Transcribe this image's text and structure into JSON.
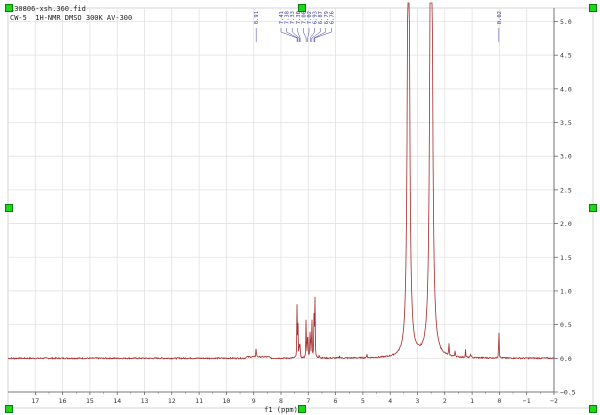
{
  "header": {
    "line1": "130806-xsh.360.fid",
    "line2": "CW-5  1H-NMR DMSO 300K AV-300"
  },
  "colors": {
    "spectrum": "#a52a2a",
    "peak_labels": "#3a3aa8",
    "grid": "#dddddd",
    "handles": "#1bd81b"
  },
  "chart_data": {
    "type": "line",
    "title": "",
    "xlabel": "f1 (ppm)",
    "ylabel": "",
    "xlim": [
      18,
      -2
    ],
    "ylim": [
      -0.5,
      5.2
    ],
    "x_reversed": true,
    "grid": true,
    "x_ticks": [
      17,
      16,
      15,
      14,
      13,
      12,
      11,
      10,
      9,
      8,
      7,
      6,
      5,
      4,
      3,
      2,
      1,
      0,
      -1,
      -2
    ],
    "x_tick_labels": [
      "17",
      "16",
      "15",
      "14",
      "13",
      "12",
      "11",
      "10",
      "9",
      "8",
      "7",
      "6",
      "5",
      "4",
      "3",
      "2",
      "1",
      "0",
      "−1",
      "−2"
    ],
    "y_ticks": [
      -0.5,
      0,
      0.5,
      1,
      1.5,
      2,
      2.5,
      3,
      3.5,
      4,
      4.5,
      5
    ],
    "y_tick_labels": [
      "−0.5",
      "0.0",
      "0.5",
      "1.0",
      "1.5",
      "2.0",
      "2.5",
      "3.0",
      "3.5",
      "4.0",
      "4.5",
      "5.0"
    ],
    "peaks": [
      {
        "ppm": 8.91,
        "height": 0.18
      },
      {
        "ppm": 7.41,
        "height": 0.95
      },
      {
        "ppm": 7.38,
        "height": 0.5
      },
      {
        "ppm": 7.33,
        "height": 0.3
      },
      {
        "ppm": 7.3,
        "height": 0.2
      },
      {
        "ppm": 7.08,
        "height": 0.72
      },
      {
        "ppm": 7.02,
        "height": 0.65
      },
      {
        "ppm": 6.93,
        "height": 0.7
      },
      {
        "ppm": 6.87,
        "height": 0.8
      },
      {
        "ppm": 6.79,
        "height": 0.6
      },
      {
        "ppm": 6.76,
        "height": 1.28
      },
      {
        "ppm": 6.6,
        "height": 0.08
      },
      {
        "ppm": 5.85,
        "height": 0.05
      },
      {
        "ppm": 4.85,
        "height": 0.06
      },
      {
        "ppm": 3.33,
        "height": 9.0
      },
      {
        "ppm": 2.5,
        "height": 12.0
      },
      {
        "ppm": 1.85,
        "height": 0.2
      },
      {
        "ppm": 1.62,
        "height": 0.14
      },
      {
        "ppm": 1.24,
        "height": 0.12
      },
      {
        "ppm": 1.05,
        "height": 0.1
      },
      {
        "ppm": 0.02,
        "height": 0.55
      }
    ],
    "peak_labels": [
      "8.91",
      "7.41",
      "7.38",
      "7.33",
      "7.30",
      "7.08",
      "7.02",
      "6.93",
      "6.87",
      "6.79",
      "6.76",
      "0.02"
    ]
  }
}
